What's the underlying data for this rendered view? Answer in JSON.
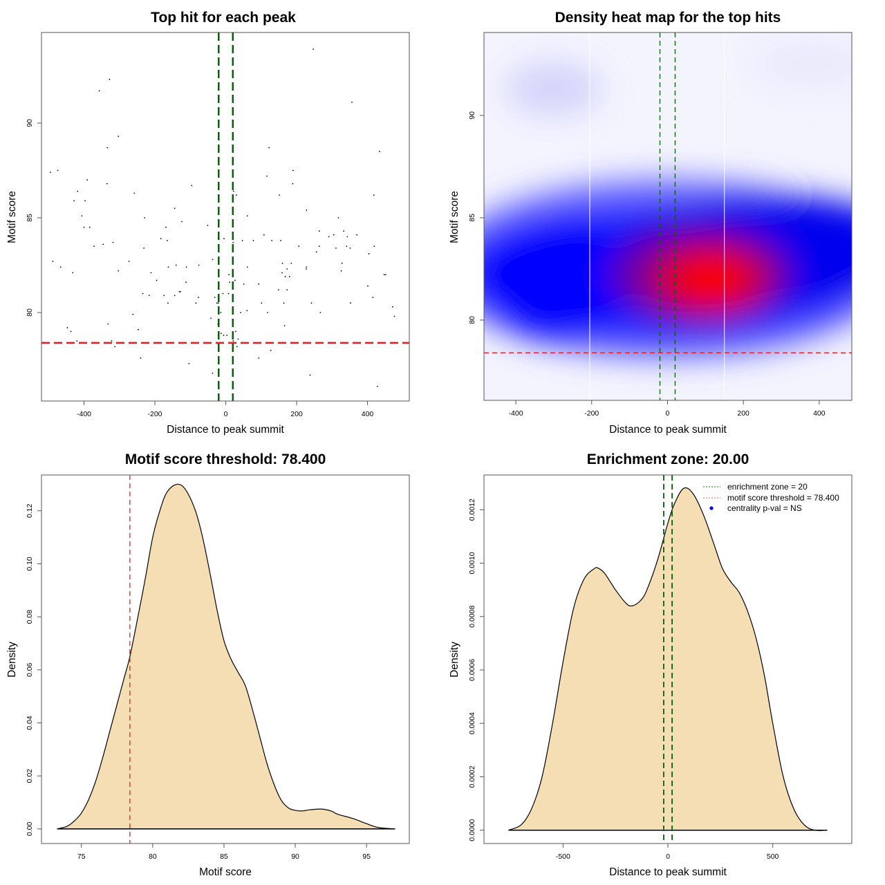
{
  "chart_data": [
    {
      "id": "scatter",
      "type": "scatter",
      "title": "Top hit for each peak",
      "xlabel": "Distance to peak summit",
      "ylabel": "Motif score",
      "xlim": [
        -520,
        518
      ],
      "ylim": [
        75.33,
        94.78
      ],
      "xticks": [
        -400,
        -200,
        0,
        200,
        400
      ],
      "yticks": [
        80,
        85,
        90
      ],
      "enrichment_zone": 20,
      "threshold": 78.4,
      "colors": {
        "points": "#000000",
        "zone": "#006400",
        "threshold": "#e02020"
      },
      "points": [
        [
          -328,
          92.3
        ],
        [
          -357,
          91.7
        ],
        [
          -303,
          89.3
        ],
        [
          -334,
          88.7
        ],
        [
          -495,
          87.4
        ],
        [
          -474,
          87.5
        ],
        [
          -391,
          87.0
        ],
        [
          -335,
          86.8
        ],
        [
          -418,
          86.4
        ],
        [
          -258,
          86.3
        ],
        [
          -397,
          85.9
        ],
        [
          -428,
          85.9
        ],
        [
          -406,
          85.1
        ],
        [
          -229,
          85.0
        ],
        [
          -144,
          85.5
        ],
        [
          -96,
          86.7
        ],
        [
          -169,
          84.5
        ],
        [
          -51,
          84.6
        ],
        [
          -124,
          84.8
        ],
        [
          247,
          93.9
        ],
        [
          356,
          91.1
        ],
        [
          122,
          88.7
        ],
        [
          434,
          88.5
        ],
        [
          190,
          87.5
        ],
        [
          116,
          87.2
        ],
        [
          189,
          86.8
        ],
        [
          22,
          86.4
        ],
        [
          30,
          86.2
        ],
        [
          151,
          86.2
        ],
        [
          418,
          86.2
        ],
        [
          228,
          85.4
        ],
        [
          61,
          85.1
        ],
        [
          318,
          85.0
        ],
        [
          -400,
          84.5
        ],
        [
          -384,
          84.5
        ],
        [
          -372,
          83.5
        ],
        [
          -346,
          83.6
        ],
        [
          -318,
          83.7
        ],
        [
          -231,
          83.4
        ],
        [
          -183,
          83.9
        ],
        [
          -165,
          83.8
        ],
        [
          -488,
          82.7
        ],
        [
          -466,
          82.4
        ],
        [
          -432,
          82.1
        ],
        [
          -303,
          82.2
        ],
        [
          -211,
          82.1
        ],
        [
          -162,
          82.4
        ],
        [
          -273,
          82.7
        ],
        [
          -140,
          82.5
        ],
        [
          -111,
          82.4
        ],
        [
          -76,
          82.5
        ],
        [
          -37,
          82.8
        ],
        [
          -112,
          81.6
        ],
        [
          -144,
          80.9
        ],
        [
          -131,
          81.1
        ],
        [
          -128,
          81.1
        ],
        [
          -195,
          81.7
        ],
        [
          -234,
          81.0
        ],
        [
          -216,
          80.9
        ],
        [
          -174,
          80.9
        ],
        [
          -163,
          80.5
        ],
        [
          -84,
          80.5
        ],
        [
          -77,
          80.8
        ],
        [
          -31,
          80.8
        ],
        [
          -25,
          80.5
        ],
        [
          -21,
          80.5
        ],
        [
          -42,
          79.7
        ],
        [
          -262,
          79.9
        ],
        [
          -332,
          79.4
        ],
        [
          -447,
          79.2
        ],
        [
          -437,
          79.0
        ],
        [
          -247,
          79.1
        ],
        [
          -13,
          78.9
        ],
        [
          -6,
          78.8
        ],
        [
          -420,
          78.5
        ],
        [
          -322,
          78.5
        ],
        [
          -313,
          78.2
        ],
        [
          -240,
          77.6
        ],
        [
          -104,
          77.3
        ],
        [
          -37,
          76.8
        ],
        [
          305,
          84.1
        ],
        [
          333,
          84.3
        ],
        [
          343,
          84.0
        ],
        [
          264,
          84.3
        ],
        [
          370,
          84.1
        ],
        [
          291,
          84.0
        ],
        [
          108,
          84.1
        ],
        [
          130,
          83.8
        ],
        [
          155,
          83.8
        ],
        [
          264,
          83.5
        ],
        [
          419,
          83.5
        ],
        [
          -5,
          83.9
        ],
        [
          47,
          83.8
        ],
        [
          21,
          83.7
        ],
        [
          78,
          83.8
        ],
        [
          206,
          83.5
        ],
        [
          256,
          83.2
        ],
        [
          404,
          83.1
        ],
        [
          311,
          83.4
        ],
        [
          341,
          83.5
        ],
        [
          351,
          83.4
        ],
        [
          185,
          82.6
        ],
        [
          61,
          82.4
        ],
        [
          160,
          82.6
        ],
        [
          159,
          82.1
        ],
        [
          228,
          82.4
        ],
        [
          227,
          82.3
        ],
        [
          328,
          82.6
        ],
        [
          326,
          82.2
        ],
        [
          9,
          82.0
        ],
        [
          173,
          82.3
        ],
        [
          168,
          81.9
        ],
        [
          180,
          81.9
        ],
        [
          447,
          82.0
        ],
        [
          451,
          82.0
        ],
        [
          11,
          81.6
        ],
        [
          26,
          81.7
        ],
        [
          51,
          81.5
        ],
        [
          93,
          81.5
        ],
        [
          -8,
          81.0
        ],
        [
          8,
          81.0
        ],
        [
          149,
          81.2
        ],
        [
          173,
          81.2
        ],
        [
          401,
          81.4
        ],
        [
          415,
          80.8
        ],
        [
          101,
          80.5
        ],
        [
          164,
          80.5
        ],
        [
          242,
          80.5
        ],
        [
          352,
          80.5
        ],
        [
          471,
          80.3
        ],
        [
          -14,
          80.0
        ],
        [
          42,
          80.0
        ],
        [
          60,
          80.1
        ],
        [
          118,
          80.0
        ],
        [
          267,
          80.0
        ],
        [
          476,
          79.8
        ],
        [
          166,
          79.3
        ],
        [
          28,
          79.0
        ],
        [
          3,
          78.8
        ],
        [
          35,
          78.6
        ],
        [
          32,
          78.2
        ],
        [
          21,
          78.5
        ],
        [
          127,
          78.0
        ],
        [
          93,
          77.6
        ],
        [
          238,
          76.7
        ],
        [
          428,
          76.1
        ],
        [
          -22,
          79.4
        ]
      ]
    },
    {
      "id": "heatmap",
      "type": "heatmap",
      "title": "Density heat map for the top hits",
      "xlabel": "Distance to peak summit",
      "ylabel": "Motif score",
      "xlim": [
        -484,
        486
      ],
      "ylim": [
        76.08,
        94.05
      ],
      "xticks": [
        -400,
        -200,
        0,
        200,
        400
      ],
      "yticks": [
        80,
        85,
        90
      ],
      "color_scale": [
        "#ffffff",
        "#0000ff",
        "#ff0000"
      ],
      "density_peak": {
        "x": 110,
        "y": 82.0
      },
      "white_vertical_lines": [
        -205,
        150
      ],
      "enrichment_zone": 20,
      "threshold": 78.4
    },
    {
      "id": "score-density",
      "type": "area",
      "title": "Motif score threshold: 78.400",
      "xlabel": "Motif score",
      "ylabel": "Density",
      "xlim": [
        72.2,
        98.0
      ],
      "ylim": [
        -0.0055,
        0.1335
      ],
      "xticks": [
        75,
        80,
        85,
        90,
        95
      ],
      "yticks": [
        "0.00",
        "0.02",
        "0.04",
        "0.06",
        "0.08",
        "0.10",
        "0.12"
      ],
      "threshold": 78.4,
      "fill": "#f5deb3",
      "x": [
        73.3,
        74.0,
        74.5,
        75.0,
        75.5,
        76.0,
        76.5,
        77.0,
        77.5,
        78.0,
        78.4,
        79.0,
        79.5,
        80.0,
        80.5,
        81.0,
        81.7,
        82.3,
        83.0,
        83.5,
        84.0,
        84.5,
        85.0,
        85.5,
        86.0,
        86.5,
        87.0,
        87.5,
        88.0,
        88.5,
        89.0,
        89.5,
        90.0,
        90.5,
        91.0,
        91.8,
        92.5,
        93.0,
        94.0,
        95.0,
        95.5,
        96.0,
        97.0
      ],
      "y": [
        0.0,
        0.001,
        0.003,
        0.006,
        0.011,
        0.018,
        0.027,
        0.037,
        0.047,
        0.057,
        0.065,
        0.081,
        0.095,
        0.11,
        0.12,
        0.127,
        0.13,
        0.128,
        0.12,
        0.11,
        0.097,
        0.083,
        0.071,
        0.064,
        0.059,
        0.054,
        0.045,
        0.035,
        0.025,
        0.017,
        0.011,
        0.008,
        0.007,
        0.0068,
        0.0072,
        0.0075,
        0.0068,
        0.0055,
        0.004,
        0.002,
        0.001,
        0.0004,
        0.0
      ]
    },
    {
      "id": "distance-density",
      "type": "area",
      "title": "Enrichment zone: 20.00",
      "xlabel": "Distance to peak summit",
      "ylabel": "Density",
      "xlim": [
        -877,
        877
      ],
      "ylim": [
        -5e-05,
        0.00133
      ],
      "xticks": [
        -500,
        0,
        500
      ],
      "yticks": [
        "0.0000",
        "0.0002",
        "0.0004",
        "0.0006",
        "0.0008",
        "0.0010",
        "0.0012"
      ],
      "enrichment_zone": 20,
      "fill": "#f5deb3",
      "x": [
        -760,
        -700,
        -650,
        -600,
        -550,
        -500,
        -450,
        -400,
        -350,
        -330,
        -300,
        -250,
        -200,
        -170,
        -130,
        -100,
        -50,
        0,
        30,
        75,
        120,
        170,
        220,
        260,
        300,
        340,
        380,
        420,
        460,
        500,
        550,
        600,
        650,
        700,
        760
      ],
      "y": [
        0.0,
        2e-05,
        8e-05,
        0.0002,
        0.0004,
        0.00063,
        0.00083,
        0.00094,
        0.00098,
        0.00098,
        0.00096,
        0.0009,
        0.00085,
        0.00084,
        0.00086,
        0.0009,
        0.00101,
        0.00115,
        0.00122,
        0.00128,
        0.00126,
        0.00118,
        0.00107,
        0.00098,
        0.00093,
        0.00089,
        0.00082,
        0.00072,
        0.00058,
        0.0004,
        0.0002,
        8e-05,
        2e-05,
        0.0,
        0.0
      ],
      "legend": {
        "placement": "top-right",
        "items": [
          {
            "label": "enrichment zone = 20",
            "color": "#008000",
            "style": "dotted-line"
          },
          {
            "label": "motif score threshold = 78.400",
            "color": "#e06060",
            "style": "dotted-line"
          },
          {
            "label": "centrality p-val = NS",
            "color": "#0000ff",
            "style": "dot"
          }
        ]
      }
    }
  ]
}
